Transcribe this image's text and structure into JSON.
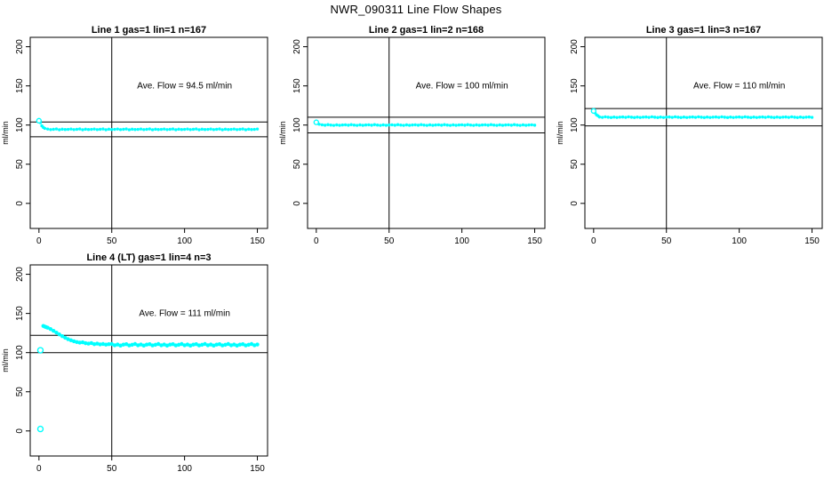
{
  "page_title": "NWR_090311  Line Flow Shapes",
  "colors": {
    "point": "#00ffff",
    "line": "#000000",
    "background": "#ffffff",
    "text": "#000000"
  },
  "chart_data": [
    {
      "type": "scatter",
      "title": "Line 1 gas=1 lin=1 n=167",
      "xlabel": "",
      "ylabel": "ml/min",
      "annotation": "Ave. Flow =  94.5  ml/min",
      "annotation_pos": [
        100,
        150
      ],
      "ave_flow": 94.5,
      "x_ticks": [
        0,
        50,
        100,
        150
      ],
      "y_ticks": [
        0,
        50,
        100,
        150,
        200
      ],
      "xlim": [
        -6,
        157
      ],
      "ylim": [
        -32,
        212
      ],
      "hlines": [
        103.95,
        85.05
      ],
      "vline": 50,
      "marker_r": 1.7,
      "open_points": [
        [
          0,
          105.5
        ]
      ],
      "points": [
        [
          1,
          103
        ],
        [
          2,
          99
        ],
        [
          3,
          97
        ],
        [
          4,
          95.8
        ],
        [
          6,
          94.9
        ],
        [
          8,
          94.2
        ],
        [
          10,
          94.6
        ],
        [
          12,
          95.0
        ],
        [
          14,
          94.0
        ],
        [
          16,
          94.7
        ],
        [
          18,
          94.3
        ],
        [
          20,
          94.5
        ],
        [
          22,
          94.9
        ],
        [
          24,
          94.2
        ],
        [
          26,
          94.6
        ],
        [
          28,
          95.0
        ],
        [
          30,
          94.0
        ],
        [
          32,
          94.7
        ],
        [
          34,
          94.3
        ],
        [
          36,
          94.5
        ],
        [
          38,
          94.9
        ],
        [
          40,
          94.2
        ],
        [
          42,
          94.6
        ],
        [
          44,
          95.0
        ],
        [
          46,
          94.0
        ],
        [
          48,
          94.7
        ],
        [
          50,
          94.3
        ],
        [
          52,
          94.5
        ],
        [
          54,
          94.9
        ],
        [
          56,
          94.2
        ],
        [
          58,
          94.6
        ],
        [
          60,
          95.0
        ],
        [
          62,
          94.0
        ],
        [
          64,
          94.7
        ],
        [
          66,
          94.3
        ],
        [
          68,
          94.5
        ],
        [
          70,
          94.9
        ],
        [
          72,
          94.2
        ],
        [
          74,
          94.6
        ],
        [
          76,
          95.0
        ],
        [
          78,
          94.0
        ],
        [
          80,
          94.7
        ],
        [
          82,
          94.3
        ],
        [
          84,
          94.5
        ],
        [
          86,
          94.9
        ],
        [
          88,
          94.2
        ],
        [
          90,
          94.6
        ],
        [
          92,
          95.0
        ],
        [
          94,
          94.0
        ],
        [
          96,
          94.7
        ],
        [
          98,
          94.3
        ],
        [
          100,
          94.5
        ],
        [
          102,
          94.9
        ],
        [
          104,
          94.2
        ],
        [
          106,
          94.6
        ],
        [
          108,
          95.0
        ],
        [
          110,
          94.0
        ],
        [
          112,
          94.7
        ],
        [
          114,
          94.3
        ],
        [
          116,
          94.5
        ],
        [
          118,
          94.9
        ],
        [
          120,
          94.2
        ],
        [
          122,
          94.6
        ],
        [
          124,
          95.0
        ],
        [
          126,
          94.0
        ],
        [
          128,
          94.7
        ],
        [
          130,
          94.3
        ],
        [
          132,
          94.5
        ],
        [
          134,
          94.9
        ],
        [
          136,
          94.2
        ],
        [
          138,
          94.6
        ],
        [
          140,
          95.0
        ],
        [
          142,
          94.0
        ],
        [
          144,
          94.7
        ],
        [
          146,
          94.3
        ],
        [
          148,
          94.5
        ],
        [
          150,
          94.9
        ]
      ]
    },
    {
      "type": "scatter",
      "title": "Line 2 gas=1 lin=2 n=168",
      "xlabel": "",
      "ylabel": "ml/min",
      "annotation": "Ave. Flow =  100  ml/min",
      "annotation_pos": [
        100,
        150
      ],
      "ave_flow": 100,
      "x_ticks": [
        0,
        50,
        100,
        150
      ],
      "y_ticks": [
        0,
        50,
        100,
        150,
        200
      ],
      "xlim": [
        -6,
        157
      ],
      "ylim": [
        -32,
        212
      ],
      "hlines": [
        110,
        90
      ],
      "vline": 50,
      "marker_r": 1.7,
      "open_points": [
        [
          0,
          103.5
        ]
      ],
      "points": [
        [
          1,
          102
        ],
        [
          2,
          101
        ],
        [
          4,
          100.3
        ],
        [
          6,
          99.8
        ],
        [
          8,
          100.5
        ],
        [
          10,
          100.0
        ],
        [
          12,
          99.6
        ],
        [
          14,
          100.2
        ],
        [
          16,
          99.7
        ],
        [
          18,
          100.1
        ],
        [
          20,
          100.3
        ],
        [
          22,
          99.8
        ],
        [
          24,
          100.5
        ],
        [
          26,
          100.0
        ],
        [
          28,
          99.6
        ],
        [
          30,
          100.2
        ],
        [
          32,
          99.7
        ],
        [
          34,
          100.1
        ],
        [
          36,
          100.3
        ],
        [
          38,
          99.8
        ],
        [
          40,
          100.5
        ],
        [
          42,
          100.0
        ],
        [
          44,
          99.6
        ],
        [
          46,
          100.2
        ],
        [
          48,
          99.7
        ],
        [
          50,
          100.1
        ],
        [
          52,
          100.3
        ],
        [
          54,
          99.8
        ],
        [
          56,
          100.5
        ],
        [
          58,
          100.0
        ],
        [
          60,
          99.6
        ],
        [
          62,
          100.2
        ],
        [
          64,
          99.7
        ],
        [
          66,
          100.1
        ],
        [
          68,
          100.3
        ],
        [
          70,
          99.8
        ],
        [
          72,
          100.5
        ],
        [
          74,
          100.0
        ],
        [
          76,
          99.6
        ],
        [
          78,
          100.2
        ],
        [
          80,
          99.7
        ],
        [
          82,
          100.1
        ],
        [
          84,
          100.3
        ],
        [
          86,
          99.8
        ],
        [
          88,
          100.5
        ],
        [
          90,
          100.0
        ],
        [
          92,
          99.6
        ],
        [
          94,
          100.2
        ],
        [
          96,
          99.7
        ],
        [
          98,
          100.1
        ],
        [
          100,
          100.3
        ],
        [
          102,
          99.8
        ],
        [
          104,
          100.5
        ],
        [
          106,
          100.0
        ],
        [
          108,
          99.6
        ],
        [
          110,
          100.2
        ],
        [
          112,
          99.7
        ],
        [
          114,
          100.1
        ],
        [
          116,
          100.3
        ],
        [
          118,
          99.8
        ],
        [
          120,
          100.5
        ],
        [
          122,
          100.0
        ],
        [
          124,
          99.6
        ],
        [
          126,
          100.2
        ],
        [
          128,
          99.7
        ],
        [
          130,
          100.1
        ],
        [
          132,
          100.3
        ],
        [
          134,
          99.8
        ],
        [
          136,
          100.5
        ],
        [
          138,
          100.0
        ],
        [
          140,
          99.6
        ],
        [
          142,
          100.2
        ],
        [
          144,
          99.7
        ],
        [
          146,
          100.1
        ],
        [
          148,
          100.3
        ],
        [
          150,
          99.8
        ]
      ]
    },
    {
      "type": "scatter",
      "title": "Line 3 gas=1 lin=3 n=167",
      "xlabel": "",
      "ylabel": "ml/min",
      "annotation": "Ave. Flow =  110  ml/min",
      "annotation_pos": [
        100,
        150
      ],
      "ave_flow": 110,
      "x_ticks": [
        0,
        50,
        100,
        150
      ],
      "y_ticks": [
        0,
        50,
        100,
        150,
        200
      ],
      "xlim": [
        -6,
        157
      ],
      "ylim": [
        -32,
        212
      ],
      "hlines": [
        121,
        99
      ],
      "vline": 50,
      "marker_r": 1.7,
      "open_points": [
        [
          0,
          118
        ]
      ],
      "points": [
        [
          1,
          115.5
        ],
        [
          2,
          113
        ],
        [
          3,
          111.8
        ],
        [
          4,
          110.3
        ],
        [
          6,
          109.8
        ],
        [
          8,
          110.5
        ],
        [
          10,
          110.0
        ],
        [
          12,
          109.6
        ],
        [
          14,
          110.2
        ],
        [
          16,
          109.7
        ],
        [
          18,
          110.1
        ],
        [
          20,
          110.3
        ],
        [
          22,
          109.8
        ],
        [
          24,
          110.5
        ],
        [
          26,
          110.0
        ],
        [
          28,
          109.6
        ],
        [
          30,
          110.2
        ],
        [
          32,
          109.7
        ],
        [
          34,
          110.1
        ],
        [
          36,
          110.3
        ],
        [
          38,
          109.8
        ],
        [
          40,
          110.5
        ],
        [
          42,
          110.0
        ],
        [
          44,
          109.6
        ],
        [
          46,
          110.2
        ],
        [
          48,
          109.7
        ],
        [
          50,
          110.1
        ],
        [
          52,
          110.3
        ],
        [
          54,
          109.8
        ],
        [
          56,
          110.5
        ],
        [
          58,
          110.0
        ],
        [
          60,
          109.6
        ],
        [
          62,
          110.2
        ],
        [
          64,
          109.7
        ],
        [
          66,
          110.1
        ],
        [
          68,
          110.3
        ],
        [
          70,
          109.8
        ],
        [
          72,
          110.5
        ],
        [
          74,
          110.0
        ],
        [
          76,
          109.6
        ],
        [
          78,
          110.2
        ],
        [
          80,
          109.7
        ],
        [
          82,
          110.1
        ],
        [
          84,
          110.3
        ],
        [
          86,
          109.8
        ],
        [
          88,
          110.5
        ],
        [
          90,
          110.0
        ],
        [
          92,
          109.6
        ],
        [
          94,
          110.2
        ],
        [
          96,
          109.7
        ],
        [
          98,
          110.1
        ],
        [
          100,
          110.3
        ],
        [
          102,
          109.8
        ],
        [
          104,
          110.5
        ],
        [
          106,
          110.0
        ],
        [
          108,
          109.6
        ],
        [
          110,
          110.2
        ],
        [
          112,
          109.7
        ],
        [
          114,
          110.1
        ],
        [
          116,
          110.3
        ],
        [
          118,
          109.8
        ],
        [
          120,
          110.5
        ],
        [
          122,
          110.0
        ],
        [
          124,
          109.6
        ],
        [
          126,
          110.2
        ],
        [
          128,
          109.7
        ],
        [
          130,
          110.1
        ],
        [
          132,
          110.3
        ],
        [
          134,
          109.8
        ],
        [
          136,
          110.5
        ],
        [
          138,
          110.0
        ],
        [
          140,
          109.6
        ],
        [
          142,
          110.2
        ],
        [
          144,
          109.7
        ],
        [
          146,
          110.1
        ],
        [
          148,
          110.3
        ],
        [
          150,
          109.8
        ]
      ]
    },
    {
      "type": "scatter",
      "title": "Line 4 (LT) gas=1 lin=4 n=3",
      "xlabel": "",
      "ylabel": "ml/min",
      "annotation": "Ave. Flow =  111  ml/min",
      "annotation_pos": [
        100,
        150
      ],
      "ave_flow": 111,
      "x_ticks": [
        0,
        50,
        100,
        150
      ],
      "y_ticks": [
        0,
        50,
        100,
        150,
        200
      ],
      "xlim": [
        -6,
        157
      ],
      "ylim": [
        -32,
        212
      ],
      "hlines": [
        122.1,
        99.9
      ],
      "vline": 50,
      "marker_r": 2.2,
      "open_points": [
        [
          1,
          2.5
        ],
        [
          1,
          103
        ]
      ],
      "points": [
        [
          3,
          134
        ],
        [
          4,
          133.2
        ],
        [
          5,
          132.5
        ],
        [
          6,
          131.8
        ],
        [
          8,
          130
        ],
        [
          10,
          127.8
        ],
        [
          12,
          125.5
        ],
        [
          14,
          123.2
        ],
        [
          16,
          121
        ],
        [
          18,
          119
        ],
        [
          20,
          117.2
        ],
        [
          22,
          115.8
        ],
        [
          24,
          114.5
        ],
        [
          26,
          113.5
        ],
        [
          28,
          112.8
        ],
        [
          30,
          113.2
        ],
        [
          32,
          112
        ],
        [
          34,
          111.5
        ],
        [
          36,
          112.2
        ],
        [
          38,
          110.8
        ],
        [
          40,
          111.5
        ],
        [
          42,
          110.5
        ],
        [
          44,
          111
        ],
        [
          46,
          110.2
        ],
        [
          48,
          110.8
        ],
        [
          50,
          111.0
        ],
        [
          52,
          109.4
        ],
        [
          54,
          110.4
        ],
        [
          56,
          109.0
        ],
        [
          58,
          110.2
        ],
        [
          60,
          110.8
        ],
        [
          62,
          109.2
        ],
        [
          64,
          110.0
        ],
        [
          66,
          111.0
        ],
        [
          68,
          109.4
        ],
        [
          70,
          110.4
        ],
        [
          72,
          109.0
        ],
        [
          74,
          110.2
        ],
        [
          76,
          110.8
        ],
        [
          78,
          109.2
        ],
        [
          80,
          110.0
        ],
        [
          82,
          111.0
        ],
        [
          84,
          109.4
        ],
        [
          86,
          110.4
        ],
        [
          88,
          109.0
        ],
        [
          90,
          110.2
        ],
        [
          92,
          110.8
        ],
        [
          94,
          109.2
        ],
        [
          96,
          110.0
        ],
        [
          98,
          111.0
        ],
        [
          100,
          109.4
        ],
        [
          102,
          110.4
        ],
        [
          104,
          109.0
        ],
        [
          106,
          110.2
        ],
        [
          108,
          110.8
        ],
        [
          110,
          109.2
        ],
        [
          112,
          110.0
        ],
        [
          114,
          111.0
        ],
        [
          116,
          109.4
        ],
        [
          118,
          110.4
        ],
        [
          120,
          109.0
        ],
        [
          122,
          110.2
        ],
        [
          124,
          110.8
        ],
        [
          126,
          109.2
        ],
        [
          128,
          110.0
        ],
        [
          130,
          111.0
        ],
        [
          132,
          109.4
        ],
        [
          134,
          110.4
        ],
        [
          136,
          109.0
        ],
        [
          138,
          110.2
        ],
        [
          140,
          110.8
        ],
        [
          142,
          109.2
        ],
        [
          144,
          110.0
        ],
        [
          146,
          111.0
        ],
        [
          148,
          109.4
        ],
        [
          150,
          110.4
        ]
      ]
    }
  ]
}
